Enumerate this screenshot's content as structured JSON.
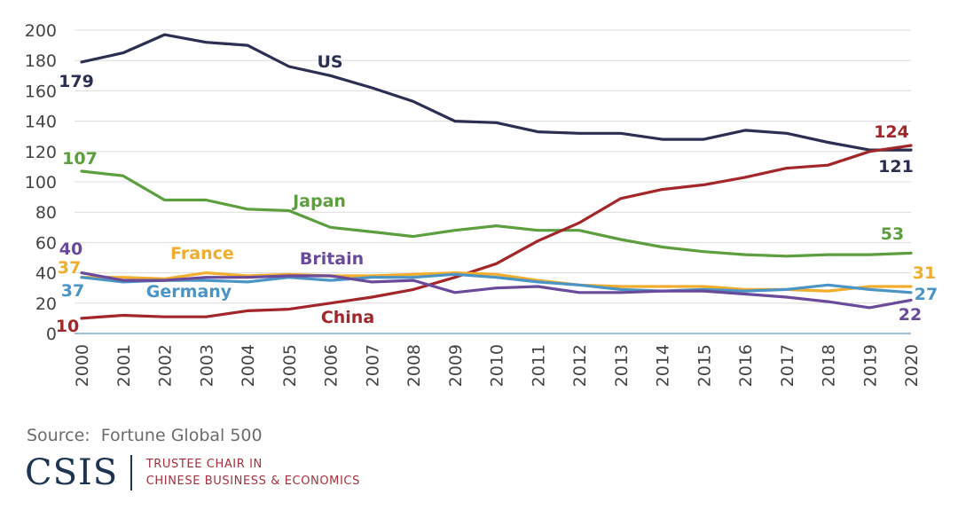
{
  "chart_data": {
    "type": "line",
    "x": [
      "2000",
      "2001",
      "2002",
      "2003",
      "2004",
      "2005",
      "2006",
      "2007",
      "2008",
      "2009",
      "2010",
      "2011",
      "2012",
      "2013",
      "2014",
      "2015",
      "2016",
      "2017",
      "2018",
      "2019",
      "2020"
    ],
    "ylim": [
      0,
      200
    ],
    "yticks": [
      0,
      20,
      40,
      60,
      80,
      100,
      120,
      140,
      160,
      180,
      200
    ],
    "grid": true,
    "series": [
      {
        "name": "US",
        "color": "#2b3052",
        "values": [
          179,
          185,
          197,
          192,
          190,
          176,
          170,
          162,
          153,
          140,
          139,
          133,
          132,
          132,
          128,
          128,
          134,
          132,
          126,
          121,
          121
        ],
        "start_label": "179",
        "end_label": "121"
      },
      {
        "name": "Japan",
        "color": "#5d9e3e",
        "values": [
          107,
          104,
          88,
          88,
          82,
          81,
          70,
          67,
          64,
          68,
          71,
          68,
          68,
          62,
          57,
          54,
          52,
          51,
          52,
          52,
          53
        ],
        "start_label": "107",
        "end_label": "53"
      },
      {
        "name": "China",
        "color": "#a3262a",
        "values": [
          10,
          12,
          11,
          11,
          15,
          16,
          20,
          24,
          29,
          37,
          46,
          61,
          73,
          89,
          95,
          98,
          103,
          109,
          111,
          120,
          124
        ],
        "start_label": "10",
        "end_label": "124"
      },
      {
        "name": "France",
        "color": "#f0ad2e",
        "values": [
          37,
          37,
          36,
          40,
          38,
          39,
          38,
          38,
          39,
          40,
          39,
          35,
          32,
          31,
          31,
          31,
          29,
          29,
          28,
          31,
          31
        ],
        "start_label": "37",
        "end_label": "31"
      },
      {
        "name": "Germany",
        "color": "#4a95c5",
        "values": [
          37,
          34,
          35,
          35,
          34,
          37,
          35,
          37,
          37,
          39,
          37,
          34,
          32,
          29,
          28,
          29,
          28,
          29,
          32,
          29,
          27
        ],
        "start_label": "37",
        "end_label": "27"
      },
      {
        "name": "Britain",
        "color": "#6a4a9a",
        "values": [
          40,
          35,
          35,
          37,
          37,
          38,
          38,
          34,
          35,
          27,
          30,
          31,
          27,
          27,
          28,
          28,
          26,
          24,
          21,
          17,
          22
        ],
        "start_label": "40",
        "end_label": "22"
      }
    ]
  },
  "source_text": "Source:  Fortune Global 500",
  "logo": {
    "mark": "CSIS",
    "line1": "TRUSTEE CHAIR IN",
    "line2": "CHINESE BUSINESS & ECONOMICS"
  }
}
